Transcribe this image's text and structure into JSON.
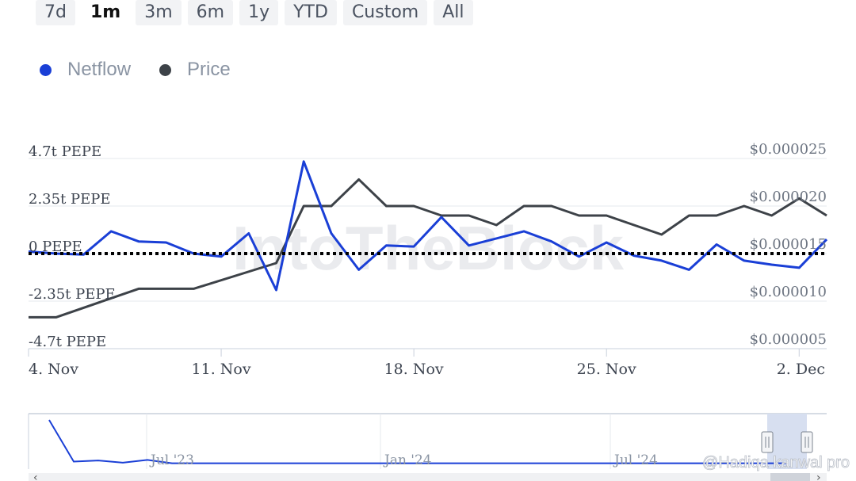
{
  "range_buttons": [
    "7d",
    "1m",
    "3m",
    "6m",
    "1y",
    "YTD",
    "Custom",
    "All"
  ],
  "active_range": "1m",
  "legend": [
    {
      "name": "Netflow",
      "color": "#1a3fd6"
    },
    {
      "name": "Price",
      "color": "#3d4248"
    }
  ],
  "watermark": "IntoTheBlock",
  "credit": "@Hadiqa kanwal pro",
  "chart_data": {
    "type": "line",
    "y_left": {
      "ticks": [
        "4.7t PEPE",
        "2.35t PEPE",
        "0 PEPE",
        "-2.35t PEPE",
        "-4.7t PEPE"
      ],
      "range": [
        -4.7,
        4.7
      ],
      "unit": "t PEPE"
    },
    "y_right": {
      "ticks": [
        "$0.000025",
        "$0.000020",
        "$0.000015",
        "$0.000010",
        "$0.000005"
      ],
      "range": [
        5e-06,
        2.5e-05
      ]
    },
    "x_ticks": [
      "4. Nov",
      "11. Nov",
      "18. Nov",
      "25. Nov",
      "2. Dec"
    ],
    "x_range_days": [
      0,
      29
    ],
    "x_tick_days": [
      0,
      7,
      14,
      21,
      28
    ],
    "zero_line": true,
    "series": [
      {
        "name": "Netflow",
        "color": "#1a3fd6",
        "axis": "left",
        "x": [
          0,
          1,
          2,
          3,
          4,
          5,
          6,
          7,
          8,
          9,
          10,
          11,
          12,
          13,
          14,
          15,
          16,
          17,
          18,
          19,
          20,
          21,
          22,
          23,
          24,
          25,
          26,
          27,
          28,
          29
        ],
        "values": [
          0.1,
          0.0,
          -0.05,
          1.1,
          0.6,
          0.55,
          0.0,
          -0.15,
          1.0,
          -1.8,
          4.55,
          1.0,
          -0.8,
          0.4,
          0.35,
          1.8,
          0.4,
          0.75,
          1.1,
          0.6,
          -0.15,
          0.55,
          -0.1,
          -0.35,
          -0.8,
          0.45,
          -0.35,
          -0.55,
          -0.7,
          0.7
        ]
      },
      {
        "name": "Price",
        "color": "#3d4248",
        "axis": "right",
        "x": [
          0,
          1,
          4,
          6,
          9,
          10,
          11,
          12,
          13,
          14,
          15,
          16,
          17,
          18,
          19,
          20,
          21,
          22,
          23,
          24,
          25,
          26,
          27,
          28,
          29
        ],
        "values": [
          8.3e-06,
          8.3e-06,
          1.13e-05,
          1.13e-05,
          1.4e-05,
          2e-05,
          2e-05,
          2.28e-05,
          2e-05,
          2e-05,
          1.9e-05,
          1.9e-05,
          1.8e-05,
          2e-05,
          2e-05,
          1.9e-05,
          1.9e-05,
          1.8e-05,
          1.7e-05,
          1.9e-05,
          1.9e-05,
          2e-05,
          1.9e-05,
          2.08e-05,
          1.9e-05
        ]
      }
    ],
    "navigator": {
      "labels": [
        "Jul '23",
        "Jan '24",
        "Jul '24"
      ],
      "values": [
        0.8,
        0.05,
        0.07,
        0.03,
        0.08,
        0.02,
        0.02,
        0.02,
        0.02,
        0.02,
        0.02,
        0.02,
        0.02,
        0.02,
        0.02,
        0.02,
        0.02,
        0.02,
        0.02,
        0.02,
        0.02,
        0.02,
        0.02,
        0.02,
        0.02,
        0.02,
        0.02,
        0.02,
        0.02,
        0.02,
        0.02
      ]
    }
  }
}
